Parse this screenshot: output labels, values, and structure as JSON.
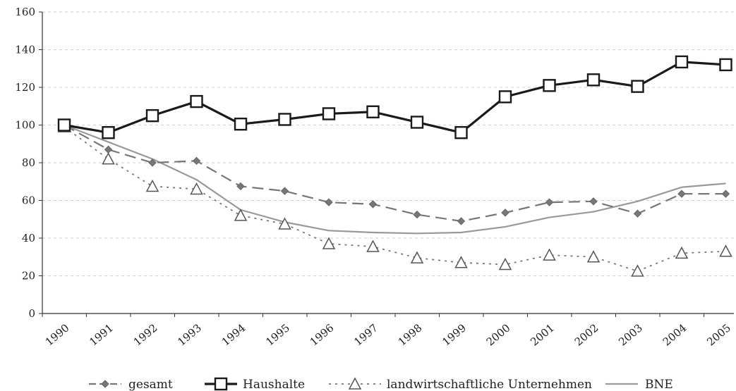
{
  "chart_data": {
    "type": "line",
    "title": "",
    "xlabel": "",
    "ylabel": "",
    "categories": [
      "1990",
      "1991",
      "1992",
      "1993",
      "1994",
      "1995",
      "1996",
      "1997",
      "1998",
      "1999",
      "2000",
      "2001",
      "2002",
      "2003",
      "2004",
      "2005"
    ],
    "ylim": [
      0,
      160
    ],
    "yticks": [
      "0",
      "20",
      "40",
      "60",
      "80",
      "100",
      "120",
      "140",
      "160"
    ],
    "grid": "horizontal dashed",
    "legend_position": "bottom",
    "series": [
      {
        "name": "gesamt",
        "style": "dashed",
        "marker": "diamond",
        "color": "#777777",
        "values": [
          100,
          87,
          80,
          81,
          67.5,
          65,
          59,
          58,
          52.5,
          49,
          53.5,
          59,
          59.5,
          53,
          63.5,
          63.5
        ]
      },
      {
        "name": "Haushalte",
        "style": "solid-bold",
        "marker": "square",
        "color": "#1a1a1a",
        "values": [
          100,
          96,
          105,
          112.5,
          100.5,
          103,
          106,
          107,
          101.5,
          96,
          115,
          121,
          124,
          120.5,
          133.5,
          132
        ]
      },
      {
        "name": "landwirtschaftliche Unternehmen",
        "style": "dotted",
        "marker": "triangle",
        "color": "#777777",
        "values": [
          99,
          82,
          67.5,
          66,
          52,
          47.5,
          37,
          35.5,
          29.5,
          27,
          26,
          31,
          30,
          22.5,
          32,
          33
        ]
      },
      {
        "name": "BNE",
        "style": "solid",
        "marker": "none",
        "color": "#999999",
        "values": [
          100,
          91,
          82,
          71,
          55,
          48.5,
          44,
          43,
          42.5,
          43,
          46,
          51,
          54,
          59.5,
          67,
          69
        ]
      }
    ]
  }
}
